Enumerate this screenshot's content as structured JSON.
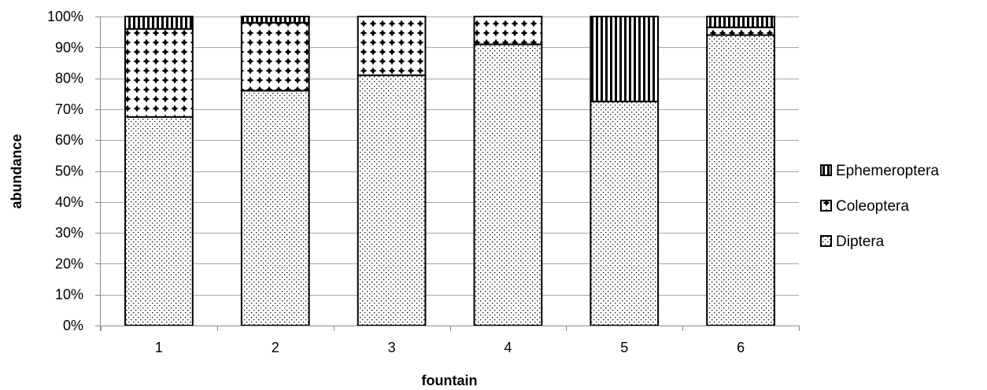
{
  "chart_data": {
    "type": "bar",
    "stacked": true,
    "percent": true,
    "categories": [
      "1",
      "2",
      "3",
      "4",
      "5",
      "6"
    ],
    "series": [
      {
        "name": "Diptera",
        "values": [
          67.5,
          76.0,
          81.0,
          91.0,
          72.5,
          94.0
        ],
        "pattern": "dots",
        "color": "#000000"
      },
      {
        "name": "Coleoptera",
        "values": [
          28.5,
          22.0,
          19.0,
          9.0,
          0,
          2.5
        ],
        "pattern": "crosses",
        "color": "#000000"
      },
      {
        "name": "Ephemeroptera",
        "values": [
          4.0,
          2.0,
          0,
          0,
          27.5,
          3.5
        ],
        "pattern": "vertical-stripes",
        "color": "#000000"
      }
    ],
    "ylim": [
      0,
      100
    ],
    "y_ticks": [
      "0%",
      "10%",
      "20%",
      "30%",
      "40%",
      "50%",
      "60%",
      "70%",
      "80%",
      "90%",
      "100%"
    ],
    "xlabel": "fountain",
    "ylabel": "abundance",
    "grid": true,
    "grid_color": "#a6a6a6",
    "legend_position": "right",
    "legend_order": [
      "Ephemeroptera",
      "Coleoptera",
      "Diptera"
    ]
  }
}
